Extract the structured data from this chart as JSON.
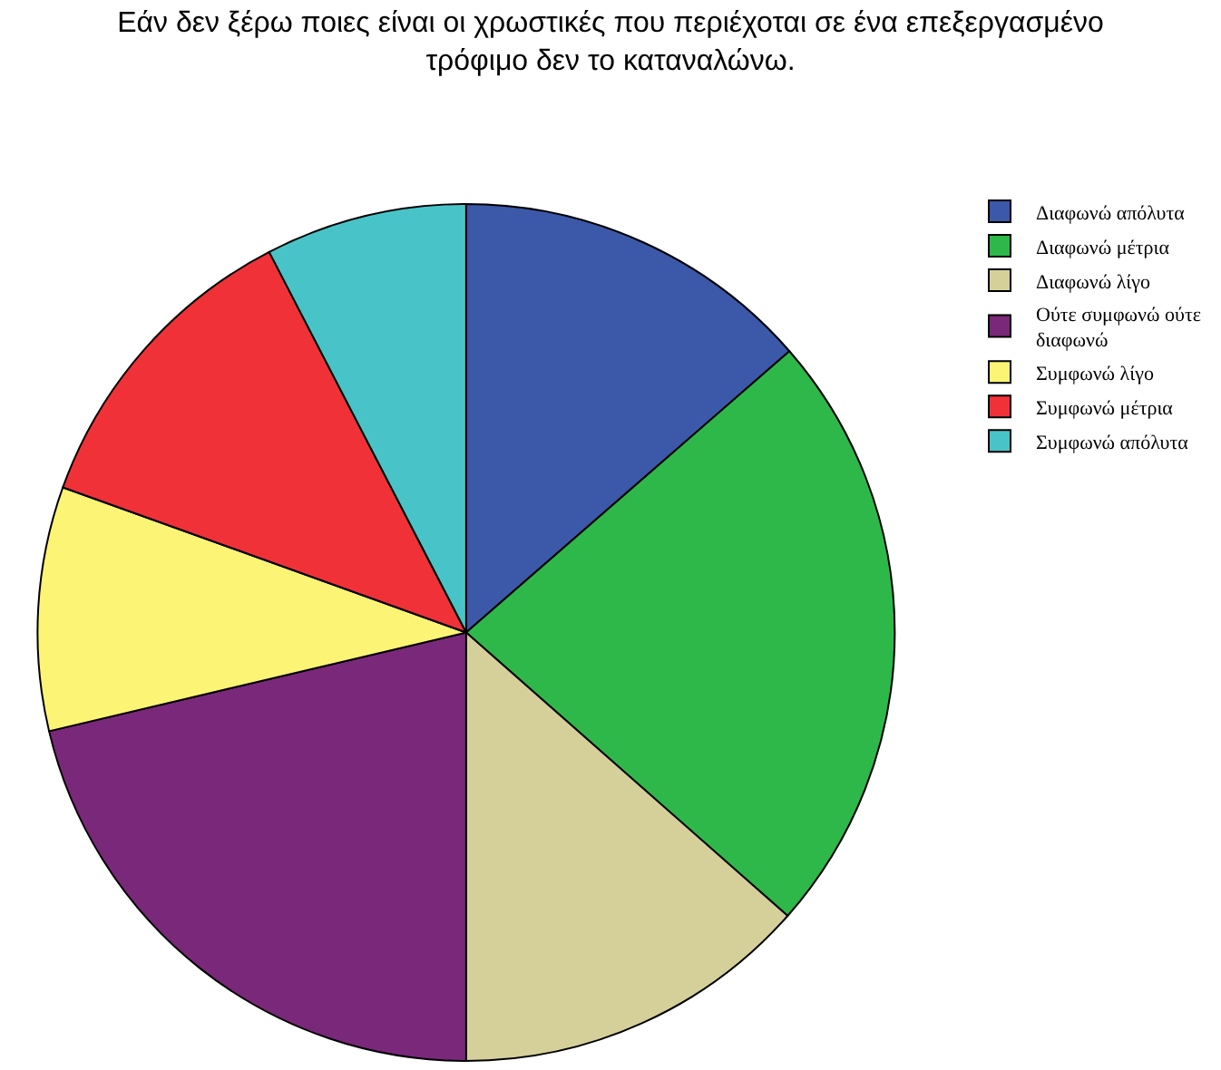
{
  "chart_data": {
    "type": "pie",
    "title": "Εάν δεν ξέρω ποιες είναι οι χρωστικές που περιέχοται σε ένα επεξεργασμένο τρόφιμο δεν το καταναλώνω.",
    "categories": [
      "Διαφωνώ απόλυτα",
      "Διαφωνώ μέτρια",
      "Διαφωνώ λίγο",
      "Ούτε συμφωνώ ούτε διαφωνώ",
      "Συμφωνώ λίγο",
      "Συμφωνώ μέτρια",
      "Συμφωνώ απόλυτα"
    ],
    "values": [
      13.6,
      22.9,
      13.5,
      21.3,
      9.2,
      11.9,
      7.6
    ],
    "colors": [
      "#3c58a8",
      "#2eb84a",
      "#d5cf9a",
      "#7a287a",
      "#fcf474",
      "#f03238",
      "#48c4c8"
    ],
    "legend": "top right"
  }
}
